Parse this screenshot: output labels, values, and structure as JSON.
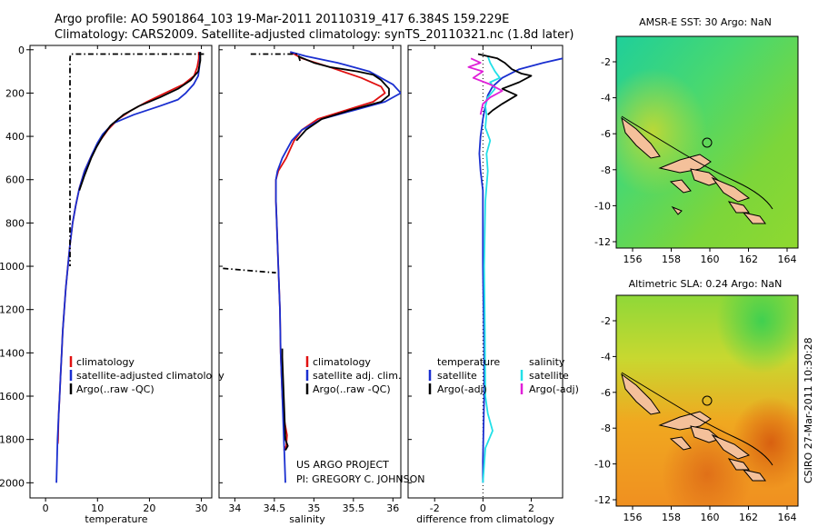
{
  "title_line1": "Argo profile: AO 5901864_103 19-Mar-2011 20110319_417 6.384S 159.229E",
  "title_line2": "Climatology: CARS2009. Satellite-adjusted climatology: synTS_20110321.nc (1.8d later)",
  "credit": [
    "US ARGO PROJECT",
    "PI: GREGORY C. JOHNSON"
  ],
  "stamp": "CSIRO 27-Mar-2011 10:30:28",
  "colors": {
    "clim": "#e01010",
    "sat": "#1a2fd0",
    "argo": "#000000",
    "sal_sat": "#22e0e8",
    "sal_argo": "#e020d8"
  },
  "depth_ticks": [
    "0",
    "200",
    "400",
    "600",
    "800",
    "1000",
    "1200",
    "1400",
    "1600",
    "1800",
    "2000"
  ],
  "chart_data": [
    {
      "type": "line",
      "id": "temperature",
      "xlabel": "temperature",
      "xlim": [
        -3,
        32
      ],
      "ylim": [
        2070,
        -20
      ],
      "xticks": [
        "0",
        "10",
        "20",
        "30"
      ],
      "legend": [
        "climatology",
        "satellite-adjusted climatology",
        "Argo(..raw -QC)"
      ],
      "series": [
        {
          "name": "climatology",
          "color": "clim",
          "points": [
            [
              29.5,
              10
            ],
            [
              29.5,
              40
            ],
            [
              29.2,
              80
            ],
            [
              28.6,
              120
            ],
            [
              26.5,
              160
            ],
            [
              23,
              200
            ],
            [
              19.5,
              240
            ],
            [
              16.5,
              280
            ],
            [
              14,
              320
            ],
            [
              12,
              370
            ],
            [
              10.5,
              420
            ],
            [
              9,
              480
            ],
            [
              7.5,
              560
            ],
            [
              6.5,
              640
            ],
            [
              5.8,
              720
            ],
            [
              5.2,
              800
            ],
            [
              4.7,
              900
            ],
            [
              4.3,
              1000
            ],
            [
              3.9,
              1100
            ],
            [
              3.6,
              1200
            ],
            [
              3.3,
              1300
            ],
            [
              3.1,
              1400
            ],
            [
              2.9,
              1500
            ],
            [
              2.7,
              1600
            ],
            [
              2.5,
              1700
            ],
            [
              2.4,
              1800
            ],
            [
              2.35,
              1820
            ]
          ]
        },
        {
          "name": "satellite",
          "color": "sat",
          "points": [
            [
              29.7,
              10
            ],
            [
              29.7,
              40
            ],
            [
              29.6,
              80
            ],
            [
              29.4,
              120
            ],
            [
              28.5,
              160
            ],
            [
              27,
              200
            ],
            [
              25.5,
              230
            ],
            [
              22,
              260
            ],
            [
              17,
              300
            ],
            [
              13,
              340
            ],
            [
              11,
              390
            ],
            [
              10,
              430
            ],
            [
              9,
              480
            ],
            [
              7.5,
              560
            ],
            [
              6.5,
              640
            ],
            [
              5.8,
              720
            ],
            [
              5.2,
              800
            ],
            [
              4.7,
              900
            ],
            [
              4.3,
              1000
            ],
            [
              3.9,
              1100
            ],
            [
              3.6,
              1200
            ],
            [
              3.3,
              1300
            ],
            [
              3.1,
              1400
            ],
            [
              2.9,
              1500
            ],
            [
              2.7,
              1600
            ],
            [
              2.5,
              1700
            ],
            [
              2.3,
              1800
            ],
            [
              2.2,
              1900
            ],
            [
              2.1,
              2000
            ]
          ]
        },
        {
          "name": "Argo",
          "color": "argo",
          "points": [
            [
              29.8,
              10
            ],
            [
              29.8,
              50
            ],
            [
              29.4,
              100
            ],
            [
              28,
              140
            ],
            [
              25.5,
              180
            ],
            [
              22,
              220
            ],
            [
              18,
              260
            ],
            [
              15,
              300
            ],
            [
              12.5,
              350
            ],
            [
              11,
              400
            ],
            [
              9.8,
              450
            ],
            [
              8.8,
              500
            ],
            [
              7.5,
              580
            ],
            [
              6.5,
              650
            ]
          ]
        },
        {
          "name": "Argo-QC",
          "color": "argo",
          "dash": "6,3,1.5,3",
          "points": [
            [
              30.5,
              20
            ],
            [
              4.8,
              20
            ],
            [
              4.7,
              40
            ],
            [
              4.7,
              1000
            ]
          ]
        }
      ]
    },
    {
      "type": "line",
      "id": "salinity",
      "xlabel": "salinity",
      "xlim": [
        33.8,
        36.1
      ],
      "ylim": [
        2070,
        -20
      ],
      "xticks": [
        "34",
        "34.5",
        "35",
        "35.5",
        "36"
      ],
      "legend": [
        "climatology",
        "satellite adj. clim.",
        "Argo(..raw -QC)"
      ],
      "series": [
        {
          "name": "climatology",
          "color": "clim",
          "points": [
            [
              34.7,
              10
            ],
            [
              34.85,
              40
            ],
            [
              35.2,
              80
            ],
            [
              35.6,
              130
            ],
            [
              35.85,
              170
            ],
            [
              35.9,
              200
            ],
            [
              35.75,
              240
            ],
            [
              35.4,
              280
            ],
            [
              35.05,
              320
            ],
            [
              34.85,
              370
            ],
            [
              34.75,
              420
            ],
            [
              34.65,
              500
            ],
            [
              34.55,
              560
            ],
            [
              34.52,
              600
            ],
            [
              34.52,
              700
            ],
            [
              34.53,
              800
            ],
            [
              34.55,
              1000
            ],
            [
              34.57,
              1200
            ],
            [
              34.58,
              1400
            ],
            [
              34.6,
              1600
            ],
            [
              34.62,
              1700
            ],
            [
              34.66,
              1780
            ],
            [
              34.65,
              1830
            ],
            [
              34.62,
              1850
            ]
          ]
        },
        {
          "name": "satellite",
          "color": "sat",
          "points": [
            [
              34.7,
              10
            ],
            [
              34.9,
              30
            ],
            [
              35.3,
              60
            ],
            [
              35.7,
              100
            ],
            [
              36.0,
              160
            ],
            [
              36.1,
              200
            ],
            [
              35.9,
              240
            ],
            [
              35.5,
              280
            ],
            [
              35.1,
              320
            ],
            [
              34.85,
              370
            ],
            [
              34.72,
              420
            ],
            [
              34.6,
              500
            ],
            [
              34.54,
              560
            ],
            [
              34.52,
              600
            ],
            [
              34.52,
              700
            ],
            [
              34.53,
              800
            ],
            [
              34.55,
              1000
            ],
            [
              34.57,
              1200
            ],
            [
              34.58,
              1400
            ],
            [
              34.6,
              1600
            ],
            [
              34.62,
              1800
            ],
            [
              34.63,
              1900
            ],
            [
              34.64,
              2000
            ]
          ]
        },
        {
          "name": "Argo",
          "color": "argo",
          "points": [
            [
              34.8,
              30
            ],
            [
              35.0,
              60
            ],
            [
              35.2,
              80
            ],
            [
              35.55,
              100
            ],
            [
              35.75,
              115
            ],
            [
              35.85,
              140
            ],
            [
              35.95,
              180
            ],
            [
              35.95,
              210
            ],
            [
              35.85,
              240
            ],
            [
              35.45,
              280
            ],
            [
              35.1,
              320
            ],
            [
              34.9,
              370
            ],
            [
              34.78,
              420
            ]
          ]
        },
        {
          "name": "Argo-QC",
          "color": "argo",
          "dash": "6,3,1.5,3",
          "points": [
            [
              34.2,
              20
            ],
            [
              34.8,
              20
            ],
            [
              34.82,
              45
            ],
            [
              34.83,
              60
            ]
          ]
        },
        {
          "name": "Argo-QC-deep",
          "color": "argo",
          "dash": "6,3,1.5,3",
          "points": [
            [
              33.85,
              1010
            ],
            [
              34.52,
              1030
            ]
          ]
        },
        {
          "name": "Argo-deep",
          "color": "argo",
          "points": [
            [
              34.6,
              1380
            ],
            [
              34.6,
              1420
            ],
            [
              34.64,
              1800
            ],
            [
              34.67,
              1830
            ],
            [
              34.64,
              1850
            ]
          ]
        }
      ]
    },
    {
      "type": "line",
      "id": "difference",
      "xlabel": "difference from climatology",
      "xlim": [
        -3.1,
        3.3
      ],
      "ylim": [
        2070,
        -20
      ],
      "xticks": [
        "-2",
        "0",
        "2"
      ],
      "legend_left": [
        "temperature",
        "satellite",
        "Argo(-adj)"
      ],
      "legend_right": [
        "salinity",
        "satellite",
        "Argo(-adj)"
      ],
      "series": [
        {
          "name": "temp satellite",
          "color": "sat",
          "points": [
            [
              3.3,
              40
            ],
            [
              2.5,
              60
            ],
            [
              1.5,
              90
            ],
            [
              0.8,
              130
            ],
            [
              0.4,
              170
            ],
            [
              0.2,
              210
            ],
            [
              0.1,
              260
            ],
            [
              0.0,
              320
            ],
            [
              -0.1,
              400
            ],
            [
              -0.15,
              480
            ],
            [
              -0.1,
              560
            ],
            [
              0.0,
              650
            ],
            [
              0.0,
              1000
            ],
            [
              0.05,
              1400
            ],
            [
              0.05,
              1600
            ],
            [
              0.0,
              1900
            ],
            [
              0.0,
              2000
            ]
          ]
        },
        {
          "name": "sal satellite",
          "color": "sal_sat",
          "points": [
            [
              0.2,
              30
            ],
            [
              0.3,
              60
            ],
            [
              0.5,
              100
            ],
            [
              0.7,
              130
            ],
            [
              0.3,
              150
            ],
            [
              0.5,
              180
            ],
            [
              0.2,
              220
            ],
            [
              0.1,
              260
            ],
            [
              0.15,
              300
            ],
            [
              0.1,
              360
            ],
            [
              0.3,
              420
            ],
            [
              0.15,
              480
            ],
            [
              0.2,
              560
            ],
            [
              0.1,
              700
            ],
            [
              0.05,
              1000
            ],
            [
              0.08,
              1300
            ],
            [
              0.1,
              1600
            ],
            [
              0.2,
              1680
            ],
            [
              0.4,
              1760
            ],
            [
              0.1,
              1840
            ],
            [
              0.0,
              2000
            ]
          ]
        },
        {
          "name": "temp Argo",
          "color": "argo",
          "points": [
            [
              -0.2,
              20
            ],
            [
              0.6,
              40
            ],
            [
              0.9,
              60
            ],
            [
              1.2,
              90
            ],
            [
              1.6,
              110
            ],
            [
              2.0,
              120
            ],
            [
              1.5,
              150
            ],
            [
              0.8,
              180
            ],
            [
              1.4,
              210
            ],
            [
              0.8,
              250
            ],
            [
              0.4,
              280
            ],
            [
              0.2,
              300
            ]
          ]
        },
        {
          "name": "sal Argo",
          "color": "sal_argo",
          "points": [
            [
              -0.5,
              40
            ],
            [
              -0.1,
              60
            ],
            [
              -0.6,
              80
            ],
            [
              0.0,
              100
            ],
            [
              -0.4,
              130
            ],
            [
              0.3,
              160
            ],
            [
              0.8,
              190
            ],
            [
              0.3,
              220
            ],
            [
              0.0,
              250
            ],
            [
              -0.1,
              300
            ]
          ]
        }
      ]
    }
  ],
  "maps": [
    {
      "id": "sst",
      "title": "AMSR-E SST: 30 Argo: NaN",
      "xticks": [
        "156",
        "158",
        "160",
        "162",
        "164"
      ],
      "yticks": [
        "-2",
        "-4",
        "-6",
        "-8",
        "-10",
        "-12"
      ]
    },
    {
      "id": "sla",
      "title": "Altimetric SLA: 0.24 Argo: NaN",
      "xticks": [
        "156",
        "158",
        "160",
        "162",
        "164"
      ],
      "yticks": [
        "-2",
        "-4",
        "-6",
        "-8",
        "-10",
        "-12"
      ]
    }
  ]
}
